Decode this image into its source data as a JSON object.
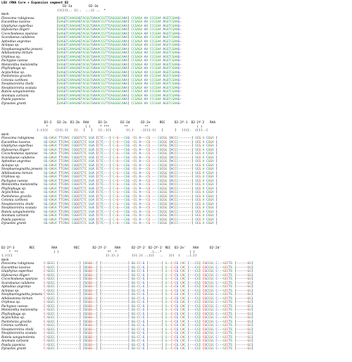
{
  "title": "LSU rRNA Core + Expansion segment D2",
  "colors": {
    "green": "#2a9d2a",
    "blue": "#2438c8",
    "red": "#d0261c",
    "teal": "#1d9a9a"
  },
  "taxa": [
    "Fleocoma rubiginosa",
    "Eucanthus lazarus",
    "Glaphyrus superbus",
    "Hybosorus illigeri",
    "Cocochodaeus spanzus",
    "Scarabaeus calubens",
    "Aphodius aegrotus",
    "Aclopus sp.",
    "Neophaenognatha jenseni",
    "Allidiostoma hirtum",
    "Orphnus sp.",
    "Pachypus caesus",
    "Melolontha melolontha",
    "Phyllophaga sp.",
    "Acylochilus sp.",
    "Pseiloheiza gracilis",
    "Cetonia carthoni",
    "Neoptiezreiria chelii",
    "Neoptiezreiria scutata",
    "Rutela sanguinolenta",
    "Anomala carlsoni",
    "Popila japonica",
    "Dynastes granti"
  ],
  "block1": {
    "header_labels": "                                 D2-1a         D2-1b",
    "header_brackets": "                              ((((((.. ((..  ...)) ..  *",
    "mask_label": "mask",
    "seq": "[GAGGTCAAAGAGTACGGTGAAACCGTTCAGGGGCAAA] CCGAGA AA CCCGAA AGGTCGAAG-"
  },
  "block2": {
    "header_labels": "                       D2-2   D2-2a  D2-2b  RAA     D2-2c       D2-2d      D2-2e     REC     D2-2f-1  D2-2f-2   RAA",
    "header_markers": "                        *                    ( )     * ***        **         **                          ( )",
    "header_brackets": "                   (.((((    ((((.((   ((.  [   ]   ((..(((        ((.)    .((((.((   [      ]   ((((.  ((((..(",
    "mask_label": "mask",
    "seq": "GG-GAGA TTCAAC CGGGTCTC GGA [CTC---] C-G---CGG -CG A---CG -- CGCGG [ACCC-------] GCG A CGGA ["
  },
  "block3": {
    "header_labels": "D2-2f-3        REC         RAA         REC       D2-2f-3'    RAA      D2-2f-2' D2-2f-1' REC  D2-2e'    RAA      D2-2d'",
    "header_markers": "    *  **                   ( )                          **  *                  .(...*               ( )",
    "header_brackets": "(.((((                                                  )).)).)       ))).)) ..)))   ..   )))  )   ..(.))",
    "mask_label": "mask",
    "seq": "C-GGCG [-----------] [GGGG--] [--------------] GG-CC-G [-------] G--C-CG CAC [---CG] CGCCGG C---GCCTG [------GG]"
  }
}
